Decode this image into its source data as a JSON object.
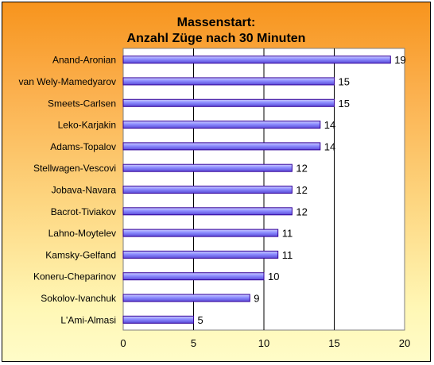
{
  "chart_data": {
    "type": "bar",
    "orientation": "horizontal",
    "title_line1": "Massenstart:",
    "title_line2": "Anzahl Züge nach 30 Minuten",
    "categories": [
      "Anand-Aronian",
      "van Wely-Mamedyarov",
      "Smeets-Carlsen",
      "Leko-Karjakin",
      "Adams-Topalov",
      "Stellwagen-Vescovi",
      "Jobava-Navara",
      "Bacrot-Tiviakov",
      "Lahno-Moytelev",
      "Kamsky-Gelfand",
      "Koneru-Cheparinov",
      "Sokolov-Ivanchuk",
      "L'Ami-Almasi"
    ],
    "values": [
      19,
      15,
      15,
      14,
      14,
      12,
      12,
      12,
      11,
      11,
      10,
      9,
      5
    ],
    "xlim": [
      0,
      20
    ],
    "xticks": [
      "0",
      "5",
      "10",
      "15",
      "20"
    ],
    "grid": "vertical major",
    "legend": "none",
    "colors": {
      "bar_fill": "#9999ff",
      "bar_edge": "#330099",
      "plot_background": "#ffffff",
      "gridline": "#000000"
    }
  }
}
